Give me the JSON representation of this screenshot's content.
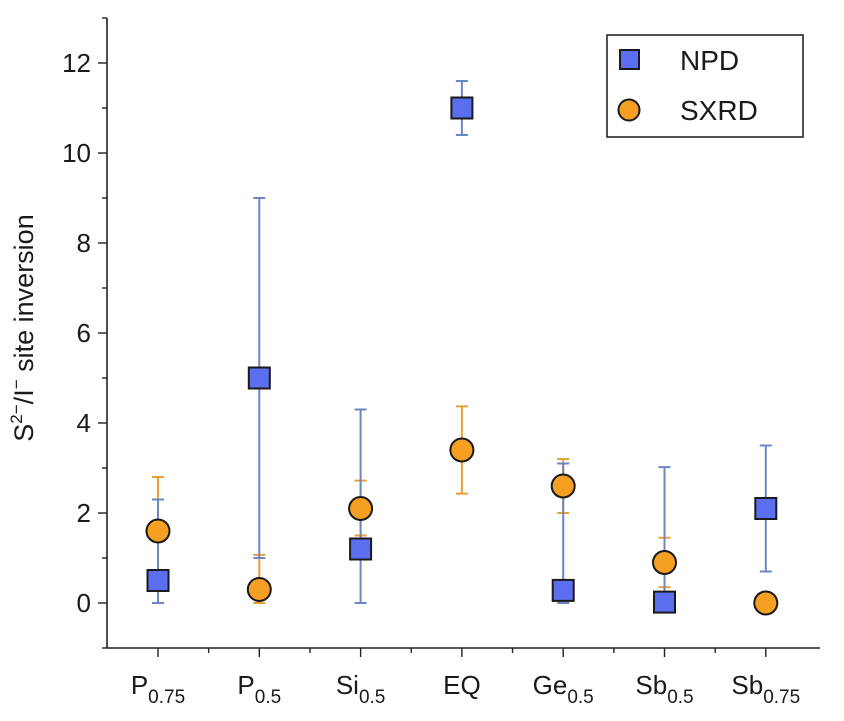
{
  "chart_data": {
    "type": "scatter",
    "title": "",
    "xlabel": "",
    "ylabel": {
      "parts": [
        {
          "text": "S",
          "style": "normal"
        },
        {
          "text": "2−",
          "style": "sup"
        },
        {
          "text": "/I",
          "style": "normal"
        },
        {
          "text": "−",
          "style": "sup"
        },
        {
          "text": " site inversion",
          "style": "normal"
        }
      ]
    },
    "categories": [
      {
        "base": "P",
        "sub": "0.75"
      },
      {
        "base": "P",
        "sub": "0.5"
      },
      {
        "base": "Si",
        "sub": "0.5"
      },
      {
        "base": "EQ",
        "sub": ""
      },
      {
        "base": "Ge",
        "sub": "0.5"
      },
      {
        "base": "Sb",
        "sub": "0.5"
      },
      {
        "base": "Sb",
        "sub": "0.75"
      }
    ],
    "ylim": [
      -1,
      13
    ],
    "yticks": [
      "0",
      "2",
      "4",
      "6",
      "8",
      "10",
      "12"
    ],
    "grid": false,
    "legend_position": "top-right",
    "series": [
      {
        "name": "NPD",
        "marker": "square",
        "fill": "#5b6ef0",
        "error_color": "#6d86c2",
        "values": [
          0.5,
          5.0,
          1.2,
          11.0,
          0.28,
          0.02,
          2.1
        ],
        "err_low": [
          0.0,
          1.0,
          0.0,
          10.4,
          0.0,
          0.0,
          0.7
        ],
        "err_high": [
          2.3,
          9.0,
          4.3,
          11.6,
          3.1,
          3.02,
          3.5
        ]
      },
      {
        "name": "SXRD",
        "marker": "circle",
        "fill": "#f5a023",
        "error_color": "#e8a035",
        "values": [
          1.6,
          0.3,
          2.1,
          3.4,
          2.6,
          0.9,
          0.0
        ],
        "err_low": [
          0.4,
          0.0,
          1.5,
          2.43,
          2.0,
          0.35,
          null
        ],
        "err_high": [
          2.8,
          1.07,
          2.72,
          4.37,
          3.2,
          1.45,
          null
        ]
      }
    ]
  }
}
